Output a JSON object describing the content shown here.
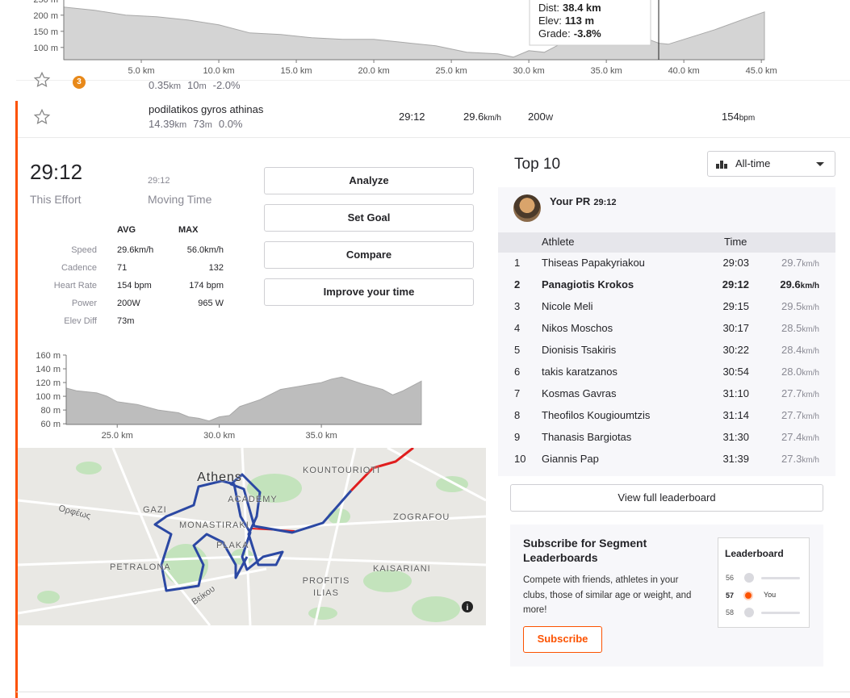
{
  "chart_data": [
    {
      "type": "area",
      "x": [
        0,
        2,
        4,
        6,
        8,
        10,
        12,
        14,
        16,
        18,
        20,
        22,
        24,
        25,
        26,
        28,
        29,
        30,
        31,
        32,
        34,
        36,
        37,
        38,
        38.4,
        39,
        40,
        42,
        44,
        45.2
      ],
      "values": [
        225,
        215,
        200,
        195,
        185,
        170,
        145,
        140,
        130,
        125,
        125,
        115,
        105,
        95,
        85,
        80,
        70,
        90,
        85,
        110,
        130,
        150,
        140,
        120,
        113,
        110,
        125,
        155,
        190,
        210
      ],
      "xlim": [
        0,
        45.2
      ],
      "ylim": [
        62,
        262
      ],
      "xticks": [
        {
          "value": 5,
          "label": "5.0 km"
        },
        {
          "value": 10,
          "label": "10.0 km"
        },
        {
          "value": 15,
          "label": "15.0 km"
        },
        {
          "value": 20,
          "label": "20.0 km"
        },
        {
          "value": 25,
          "label": "25.0 km"
        },
        {
          "value": 30,
          "label": "30.0 km"
        },
        {
          "value": 35,
          "label": "35.0 km"
        },
        {
          "value": 40,
          "label": "40.0 km"
        },
        {
          "value": 45,
          "label": "45.0 km"
        }
      ],
      "yticks": [
        {
          "value": 100,
          "label": "100 m"
        },
        {
          "value": 150,
          "label": "150 m"
        },
        {
          "value": 200,
          "label": "200 m"
        },
        {
          "value": 250,
          "label": "250 m"
        }
      ],
      "color": "#d4d4d4",
      "tooltip": {
        "dist_label": "Dist:",
        "dist": "38.4 km",
        "elev_label": "Elev:",
        "elev": "113 m",
        "grade_label": "Grade:",
        "grade": "-3.8%"
      }
    },
    {
      "type": "area",
      "x": [
        22.5,
        23,
        24,
        24.5,
        25,
        26,
        27,
        28,
        28.5,
        29,
        29.5,
        30,
        30.5,
        31,
        32,
        33,
        34,
        35,
        35.5,
        36,
        37,
        38,
        38.5,
        39,
        39.9
      ],
      "values": [
        112,
        108,
        105,
        100,
        92,
        88,
        80,
        76,
        70,
        68,
        64,
        70,
        72,
        85,
        95,
        110,
        115,
        120,
        125,
        128,
        118,
        110,
        102,
        108,
        122
      ],
      "xlim": [
        22.5,
        39.9
      ],
      "ylim": [
        59,
        160
      ],
      "xticks": [
        {
          "value": 25,
          "label": "25.0 km"
        },
        {
          "value": 30,
          "label": "30.0 km"
        },
        {
          "value": 35,
          "label": "35.0 km"
        }
      ],
      "yticks": [
        {
          "value": 60,
          "label": "60 m"
        },
        {
          "value": 80,
          "label": "80 m"
        },
        {
          "value": 100,
          "label": "100 m"
        },
        {
          "value": 120,
          "label": "120 m"
        },
        {
          "value": 140,
          "label": "140 m"
        },
        {
          "value": 160,
          "label": "160 m"
        }
      ],
      "color": "#bdbdbd"
    }
  ],
  "previous_segment": {
    "badge": "3",
    "distance": "0.35",
    "distance_unit": "km",
    "elevation": "10",
    "elevation_unit": "m",
    "grade": "-2.0%"
  },
  "segment": {
    "name": "podilatikos gyros athinas",
    "distance": "14.39",
    "distance_unit": "km",
    "elevation": "73",
    "elevation_unit": "m",
    "grade": "0.0%",
    "time": "29:12",
    "speed": "29.6",
    "speed_unit": "km/h",
    "power": "200",
    "power_unit": "W",
    "heart_rate": "154",
    "heart_rate_unit": "bpm"
  },
  "effort": {
    "time": "29:12",
    "time_label": "This Effort",
    "moving_time": "29:12",
    "moving_time_label": "Moving Time",
    "buttons": [
      "Analyze",
      "Set Goal",
      "Compare",
      "Improve your time"
    ],
    "stats_headers": [
      "AVG",
      "MAX"
    ],
    "stats": [
      {
        "label": "Speed",
        "avg": "29.6km/h",
        "max": "56.0km/h"
      },
      {
        "label": "Cadence",
        "avg": "71",
        "max": "132"
      },
      {
        "label": "Heart Rate",
        "avg": "154 bpm",
        "max": "174 bpm"
      },
      {
        "label": "Power",
        "avg": "200W",
        "max": "965 W"
      },
      {
        "label": "Elev Diff",
        "avg": "73m"
      }
    ]
  },
  "map": {
    "labels": [
      "Athens",
      "KOUNTOURIOTI",
      "ACADEMY",
      "GAZI",
      "MONASTIRAKI",
      "PLAKA",
      "PETRALONA",
      "ZOGRAFOU",
      "KAISARIANI",
      "PROFITIS ILIAS",
      "Ορφέως",
      "Βείκου"
    ]
  },
  "leaderboard": {
    "title": "Top 10",
    "filter": "All-time",
    "your_pr_label": "Your PR",
    "your_pr_time": "29:12",
    "headers": [
      "Athlete",
      "Time"
    ],
    "rows": [
      {
        "rank": 1,
        "name": "Thiseas Papakyriakou",
        "time": "29:03",
        "speed": "29.7",
        "unit": "km/h"
      },
      {
        "rank": 2,
        "name": "Panagiotis Krokos",
        "time": "29:12",
        "speed": "29.6",
        "unit": "km/h"
      },
      {
        "rank": 3,
        "name": "Nicole Meli",
        "time": "29:15",
        "speed": "29.5",
        "unit": "km/h"
      },
      {
        "rank": 4,
        "name": "Nikos Moschos",
        "time": "30:17",
        "speed": "28.5",
        "unit": "km/h"
      },
      {
        "rank": 5,
        "name": "Dionisis Tsakiris",
        "time": "30:22",
        "speed": "28.4",
        "unit": "km/h"
      },
      {
        "rank": 6,
        "name": "takis karatzanos",
        "time": "30:54",
        "speed": "28.0",
        "unit": "km/h"
      },
      {
        "rank": 7,
        "name": "Kosmas Gavras",
        "time": "31:10",
        "speed": "27.7",
        "unit": "km/h"
      },
      {
        "rank": 8,
        "name": "Theofilos Kougioumtzis",
        "time": "31:14",
        "speed": "27.7",
        "unit": "km/h"
      },
      {
        "rank": 9,
        "name": "Thanasis Bargiotas",
        "time": "31:30",
        "speed": "27.4",
        "unit": "km/h"
      },
      {
        "rank": 10,
        "name": "Giannis Pap",
        "time": "31:39",
        "speed": "27.3",
        "unit": "km/h"
      }
    ],
    "view_all": "View full leaderboard"
  },
  "subscribe": {
    "title": "Subscribe for Segment Leaderboards",
    "text": "Compete with friends, athletes in your clubs, those of similar age or weight, and more!",
    "button": "Subscribe",
    "card_title": "Leaderboard",
    "card_rows": [
      {
        "rank": 56
      },
      {
        "rank": 57,
        "label": "You"
      },
      {
        "rank": 58
      }
    ]
  }
}
